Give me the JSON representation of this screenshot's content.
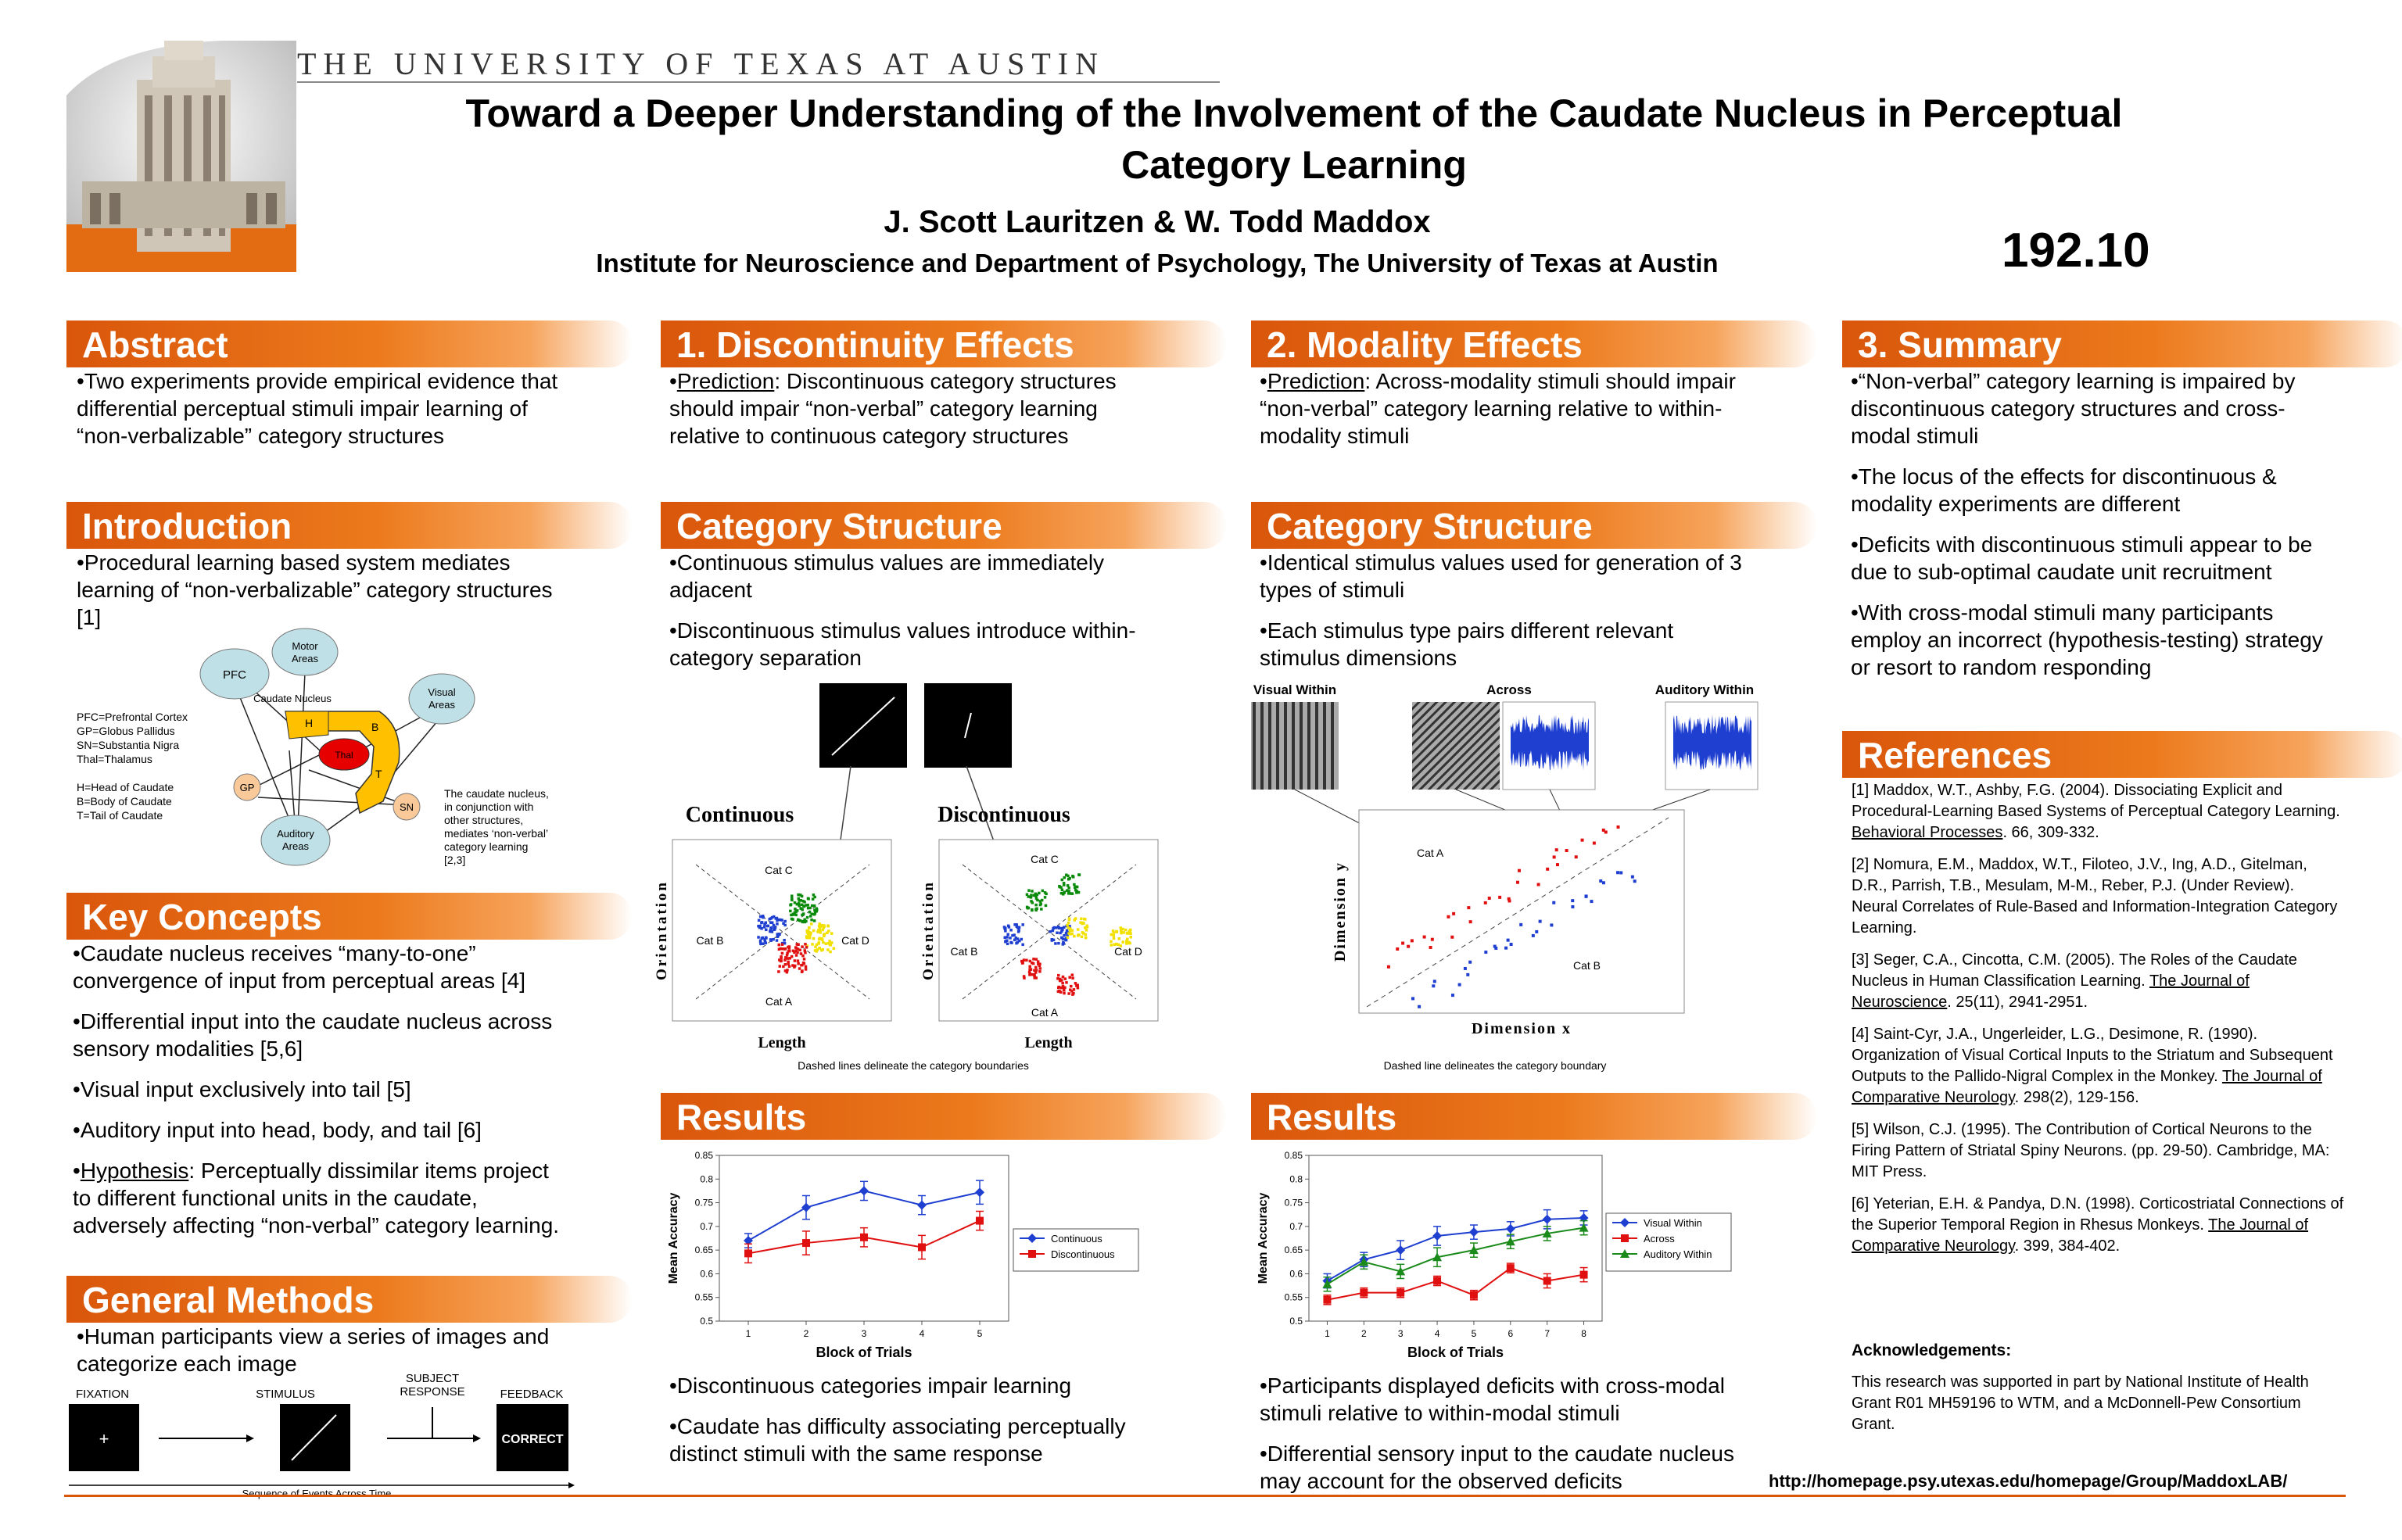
{
  "header": {
    "university": "THE UNIVERSITY OF TEXAS AT AUSTIN",
    "title_line1": "Toward a Deeper Understanding of the Involvement of the Caudate Nucleus in Perceptual",
    "title_line2": "Category Learning",
    "authors": "J. Scott Lauritzen & W. Todd Maddox",
    "institution": "Institute for Neuroscience and Department of Psychology, The University of Texas at Austin",
    "poster_number": "192.10"
  },
  "abstract": {
    "heading": "Abstract",
    "text": "•Two experiments provide empirical evidence that differential perceptual stimuli impair learning of “non-verbalizable” category structures"
  },
  "introduction": {
    "heading": "Introduction",
    "text": "•Procedural learning based system mediates learning of “non-verbalizable” category structures [1]",
    "diagram": {
      "pfc": "PFC",
      "motor_l1": "Motor",
      "motor_l2": "Areas",
      "visual_l1": "Visual",
      "visual_l2": "Areas",
      "caudate": "Caudate Nucleus",
      "h": "H",
      "b": "B",
      "t": "T",
      "thal": "Thal",
      "gp": "GP",
      "sn": "SN",
      "auditory_l1": "Auditory",
      "auditory_l2": "Areas",
      "legend1": [
        "PFC=Prefrontal Cortex",
        "GP=Globus Pallidus",
        "SN=Substantia Nigra",
        "Thal=Thalamus"
      ],
      "legend2": [
        "H=Head of Caudate",
        "B=Body of Caudate",
        "T=Tail of Caudate"
      ],
      "note": [
        "The caudate nucleus,",
        "in conjunction with",
        "other structures,",
        "mediates ‘non-verbal’",
        "category learning",
        "[2,3]"
      ]
    }
  },
  "key_concepts": {
    "heading": "Key Concepts",
    "items": [
      "•Caudate nucleus receives “many-to-one” convergence of input from perceptual areas [4]",
      "•Differential input into the caudate nucleus across sensory modalities [5,6]",
      "•Visual input exclusively into tail [5]",
      "•Auditory input into head, body, and tail [6]"
    ],
    "hypothesis_label": "Hypothesis",
    "hypothesis_text": ":  Perceptually dissimilar items project to different functional units in the caudate, adversely affecting “non-verbal” category learning."
  },
  "general_methods": {
    "heading": "General Methods",
    "text": "•Human participants view a series of images and categorize each image",
    "fixation": "FIXATION",
    "fixation_symbol": "+",
    "stimulus": "STIMULUS",
    "subject_response_l1": "SUBJECT",
    "subject_response_l2": "RESPONSE",
    "feedback": "FEEDBACK",
    "correct": "CORRECT",
    "timeline": "Sequence of Events Across Time"
  },
  "discontinuity": {
    "heading": "1. Discontinuity Effects",
    "prediction_label": "Prediction",
    "prediction_text": ":  Discontinuous category structures should impair “non-verbal” category learning relative to continuous category structures",
    "structure_heading": "Category Structure",
    "structure_items": [
      "•Continuous stimulus values are immediately adjacent",
      "•Discontinuous stimulus values introduce within-category separation"
    ],
    "continuous_title": "Continuous",
    "discontinuous_title": "Discontinuous",
    "ylabel": "Orientation",
    "xlabel": "Length",
    "cat_a": "Cat A",
    "cat_b": "Cat B",
    "cat_c": "Cat C",
    "cat_d": "Cat D",
    "caption": "Dashed lines delineate the category boundaries",
    "results_heading": "Results",
    "results_items": [
      "•Discontinuous categories impair learning",
      "•Caudate has difficulty associating perceptually distinct stimuli with the same response"
    ]
  },
  "modality": {
    "heading": "2. Modality Effects",
    "prediction_label": "Prediction",
    "prediction_text": ":  Across-modality stimuli should impair “non-verbal” category learning relative to within-modality stimuli",
    "structure_heading": "Category Structure",
    "structure_items": [
      "•Identical stimulus values used for generation of 3 types of stimuli",
      "•Each stimulus type pairs different relevant stimulus dimensions"
    ],
    "visual_within": "Visual Within",
    "across": "Across",
    "auditory_within": "Auditory Within",
    "ylabel": "Dimension y",
    "xlabel": "Dimension x",
    "cat_a": "Cat A",
    "cat_b": "Cat B",
    "caption": "Dashed line delineates the category boundary",
    "results_heading": "Results",
    "results_items": [
      "•Participants displayed deficits with cross-modal stimuli relative to within-modal stimuli",
      "•Differential sensory input to the caudate nucleus may account for the observed deficits"
    ]
  },
  "summary": {
    "heading": "3. Summary",
    "items": [
      "•“Non-verbal” category learning is impaired by discontinuous category structures and cross-modal stimuli",
      "•The locus of the effects for discontinuous & modality experiments are different",
      "•Deficits with discontinuous stimuli appear to be due to sub-optimal caudate unit recruitment",
      "•With cross-modal stimuli many participants employ an incorrect (hypothesis-testing) strategy or resort to random responding"
    ]
  },
  "references": {
    "heading": "References",
    "items": [
      {
        "pre": "[1]  Maddox, W.T., Ashby, F.G.  (2004).  Dissociating Explicit and Procedural-Learning Based Systems of Perceptual Category Learning.  ",
        "u": "Behavioral Processes",
        "post": ".  66, 309-332."
      },
      {
        "pre": "[2]  Nomura, E.M., Maddox, W.T., Filoteo, J.V., Ing, A.D., Gitelman, D.R., Parrish, T.B., Mesulam, M-M., Reber, P.J. (Under Review).  Neural Correlates of Rule-Based and Information-Integration Category Learning.",
        "u": "",
        "post": ""
      },
      {
        "pre": "[3]  Seger, C.A., Cincotta, C.M.  (2005).  The Roles of the Caudate Nucleus in Human Classification Learning.  ",
        "u": "The Journal of Neuroscience",
        "post": ".  25(11), 2941-2951."
      },
      {
        "pre": "[4]  Saint-Cyr, J.A., Ungerleider, L.G., Desimone, R.  (1990). Organization of Visual Cortical Inputs to the Striatum and Subsequent Outputs to the Pallido-Nigral Complex in the Monkey.  ",
        "u": "The Journal of Comparative Neurology",
        "post": ".  298(2), 129-156."
      },
      {
        "pre": "[5]  Wilson, C.J.  (1995).  The Contribution of Cortical Neurons to the Firing Pattern of Striatal Spiny Neurons.  (pp. 29-50).  Cambridge, MA:  MIT Press.",
        "u": "",
        "post": ""
      },
      {
        "pre": "[6]  Yeterian, E.H. & Pandya, D.N.  (1998).  Corticostriatal Connections of the Superior Temporal Region in Rhesus Monkeys.  ",
        "u": "The Journal of Comparative Neurology",
        "post": ".  399, 384-402."
      }
    ]
  },
  "acknowledgements": {
    "heading": "Acknowledgements:",
    "text": "This research was supported in part by National Institute of Health Grant R01 MH59196 to WTM, and a McDonnell-Pew Consortium Grant."
  },
  "url": "http://homepage.psy.utexas.edu/homepage/Group/MaddoxLAB/",
  "chart_data": [
    {
      "type": "line",
      "xlabel": "Block of Trials",
      "ylabel": "Mean Accuracy",
      "x": [
        1,
        2,
        3,
        4,
        5
      ],
      "ylim": [
        0.5,
        0.85
      ],
      "yticks": [
        "0.5",
        "0.55",
        "0.6",
        "0.65",
        "0.7",
        "0.75",
        "0.8",
        "0.85"
      ],
      "legend_position": "right",
      "series": [
        {
          "name": "Continuous",
          "color": "#1f3fd0",
          "marker": "diamond",
          "values": [
            0.67,
            0.74,
            0.775,
            0.745,
            0.772
          ],
          "err": [
            0.015,
            0.025,
            0.02,
            0.02,
            0.025
          ]
        },
        {
          "name": "Discontinuous",
          "color": "#e01010",
          "marker": "square",
          "values": [
            0.643,
            0.665,
            0.677,
            0.656,
            0.712
          ],
          "err": [
            0.02,
            0.025,
            0.02,
            0.025,
            0.02
          ]
        }
      ]
    },
    {
      "type": "line",
      "xlabel": "Block of Trials",
      "ylabel": "Mean Accuracy",
      "x": [
        1,
        2,
        3,
        4,
        5,
        6,
        7,
        8
      ],
      "ylim": [
        0.5,
        0.85
      ],
      "yticks": [
        "0.5",
        "0.55",
        "0.6",
        "0.65",
        "0.7",
        "0.75",
        "0.8",
        "0.85"
      ],
      "legend_position": "right",
      "series": [
        {
          "name": "Visual Within",
          "color": "#1f3fd0",
          "marker": "diamond",
          "values": [
            0.585,
            0.63,
            0.65,
            0.68,
            0.688,
            0.695,
            0.715,
            0.718
          ],
          "err": [
            0.015,
            0.015,
            0.02,
            0.02,
            0.015,
            0.015,
            0.02,
            0.015
          ]
        },
        {
          "name": "Across",
          "color": "#e01010",
          "marker": "square",
          "values": [
            0.545,
            0.56,
            0.56,
            0.585,
            0.555,
            0.612,
            0.585,
            0.598
          ],
          "err": [
            0.01,
            0.01,
            0.01,
            0.01,
            0.01,
            0.01,
            0.015,
            0.015
          ]
        },
        {
          "name": "Auditory Within",
          "color": "#1a8a1a",
          "marker": "triangle",
          "values": [
            0.578,
            0.625,
            0.605,
            0.635,
            0.65,
            0.668,
            0.685,
            0.697
          ],
          "err": [
            0.015,
            0.015,
            0.015,
            0.02,
            0.015,
            0.015,
            0.015,
            0.015
          ]
        }
      ]
    }
  ]
}
